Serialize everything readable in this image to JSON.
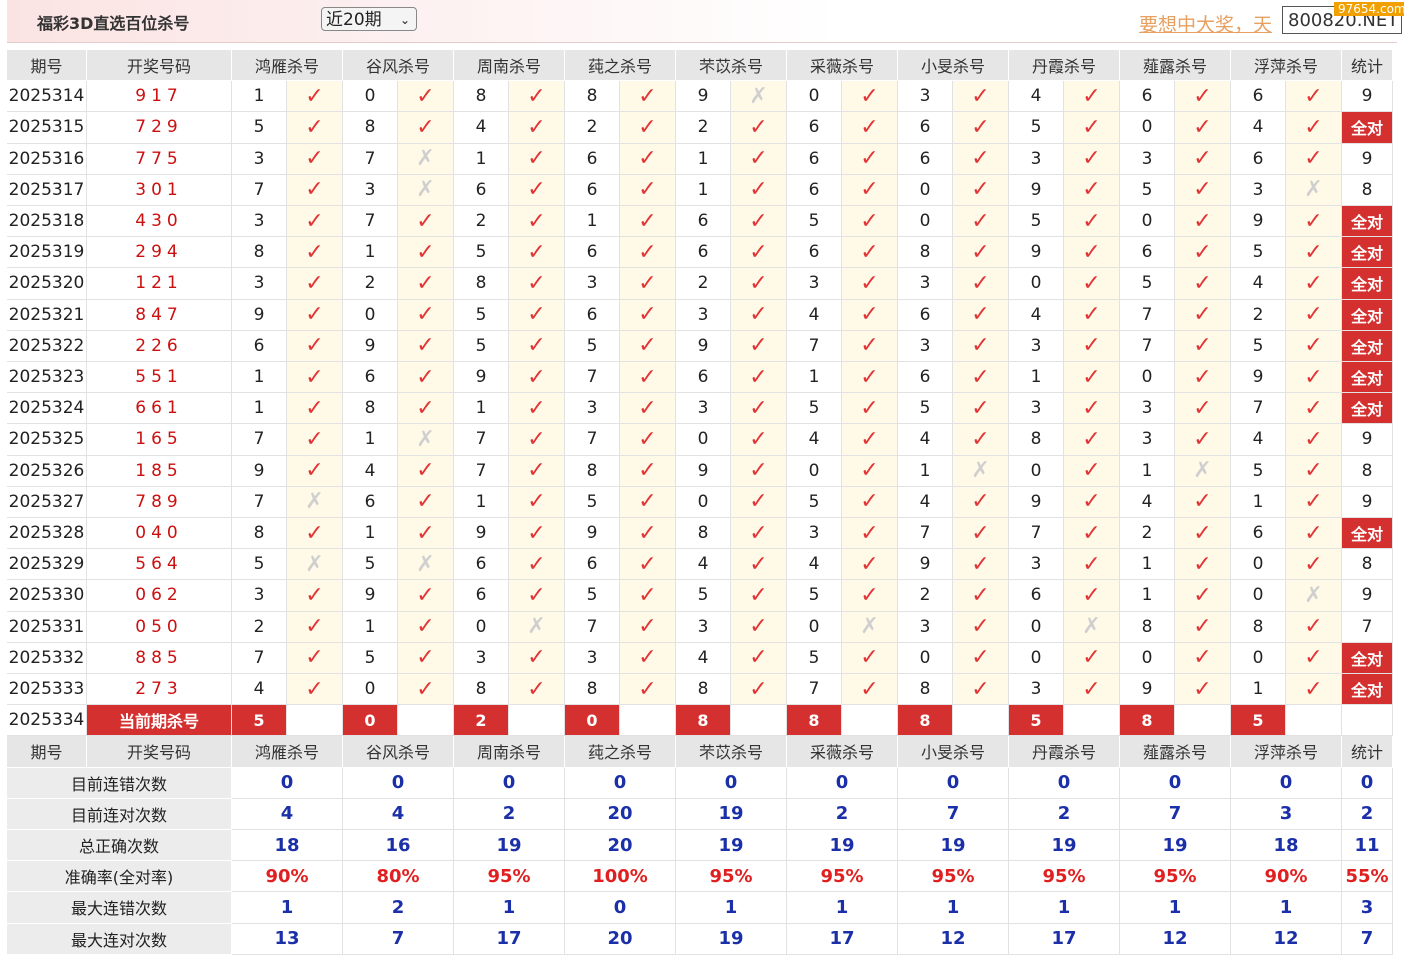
{
  "header": {
    "title": "福彩3D直选百位杀号",
    "period_select": "近20期",
    "marquee": "要想中大奖，天",
    "site": "800820.NET",
    "watermark": "97654.com"
  },
  "table": {
    "columns": [
      "期号",
      "开奖号码",
      "鸿雁杀号",
      "谷风杀号",
      "周南杀号",
      "莼之杀号",
      "芣苡杀号",
      "采薇杀号",
      "小旻杀号",
      "丹霞杀号",
      "薤露杀号",
      "浮萍杀号",
      "统计"
    ],
    "rows": [
      {
        "period": "2025314",
        "draw": "917",
        "kills": [
          [
            1,
            "✓"
          ],
          [
            0,
            "✓"
          ],
          [
            8,
            "✓"
          ],
          [
            8,
            "✓"
          ],
          [
            9,
            "✗"
          ],
          [
            0,
            "✓"
          ],
          [
            3,
            "✓"
          ],
          [
            4,
            "✓"
          ],
          [
            6,
            "✓"
          ],
          [
            6,
            "✓"
          ]
        ],
        "stat": 9
      },
      {
        "period": "2025315",
        "draw": "729",
        "kills": [
          [
            5,
            "✓"
          ],
          [
            8,
            "✓"
          ],
          [
            4,
            "✓"
          ],
          [
            2,
            "✓"
          ],
          [
            2,
            "✓"
          ],
          [
            6,
            "✓"
          ],
          [
            6,
            "✓"
          ],
          [
            5,
            "✓"
          ],
          [
            0,
            "✓"
          ],
          [
            4,
            "✓"
          ]
        ],
        "stat": "全对"
      },
      {
        "period": "2025316",
        "draw": "775",
        "kills": [
          [
            3,
            "✓"
          ],
          [
            7,
            "✗"
          ],
          [
            1,
            "✓"
          ],
          [
            6,
            "✓"
          ],
          [
            1,
            "✓"
          ],
          [
            6,
            "✓"
          ],
          [
            6,
            "✓"
          ],
          [
            3,
            "✓"
          ],
          [
            3,
            "✓"
          ],
          [
            6,
            "✓"
          ]
        ],
        "stat": 9
      },
      {
        "period": "2025317",
        "draw": "301",
        "kills": [
          [
            7,
            "✓"
          ],
          [
            3,
            "✗"
          ],
          [
            6,
            "✓"
          ],
          [
            6,
            "✓"
          ],
          [
            1,
            "✓"
          ],
          [
            6,
            "✓"
          ],
          [
            0,
            "✓"
          ],
          [
            9,
            "✓"
          ],
          [
            5,
            "✓"
          ],
          [
            3,
            "✗"
          ]
        ],
        "stat": 8
      },
      {
        "period": "2025318",
        "draw": "430",
        "kills": [
          [
            3,
            "✓"
          ],
          [
            7,
            "✓"
          ],
          [
            2,
            "✓"
          ],
          [
            1,
            "✓"
          ],
          [
            6,
            "✓"
          ],
          [
            5,
            "✓"
          ],
          [
            0,
            "✓"
          ],
          [
            5,
            "✓"
          ],
          [
            0,
            "✓"
          ],
          [
            9,
            "✓"
          ]
        ],
        "stat": "全对"
      },
      {
        "period": "2025319",
        "draw": "294",
        "kills": [
          [
            8,
            "✓"
          ],
          [
            1,
            "✓"
          ],
          [
            5,
            "✓"
          ],
          [
            6,
            "✓"
          ],
          [
            6,
            "✓"
          ],
          [
            6,
            "✓"
          ],
          [
            8,
            "✓"
          ],
          [
            9,
            "✓"
          ],
          [
            6,
            "✓"
          ],
          [
            5,
            "✓"
          ]
        ],
        "stat": "全对"
      },
      {
        "period": "2025320",
        "draw": "121",
        "kills": [
          [
            3,
            "✓"
          ],
          [
            2,
            "✓"
          ],
          [
            8,
            "✓"
          ],
          [
            3,
            "✓"
          ],
          [
            2,
            "✓"
          ],
          [
            3,
            "✓"
          ],
          [
            3,
            "✓"
          ],
          [
            0,
            "✓"
          ],
          [
            5,
            "✓"
          ],
          [
            4,
            "✓"
          ]
        ],
        "stat": "全对"
      },
      {
        "period": "2025321",
        "draw": "847",
        "kills": [
          [
            9,
            "✓"
          ],
          [
            0,
            "✓"
          ],
          [
            5,
            "✓"
          ],
          [
            6,
            "✓"
          ],
          [
            3,
            "✓"
          ],
          [
            4,
            "✓"
          ],
          [
            6,
            "✓"
          ],
          [
            4,
            "✓"
          ],
          [
            7,
            "✓"
          ],
          [
            2,
            "✓"
          ]
        ],
        "stat": "全对"
      },
      {
        "period": "2025322",
        "draw": "226",
        "kills": [
          [
            6,
            "✓"
          ],
          [
            9,
            "✓"
          ],
          [
            5,
            "✓"
          ],
          [
            5,
            "✓"
          ],
          [
            9,
            "✓"
          ],
          [
            7,
            "✓"
          ],
          [
            3,
            "✓"
          ],
          [
            3,
            "✓"
          ],
          [
            7,
            "✓"
          ],
          [
            5,
            "✓"
          ]
        ],
        "stat": "全对"
      },
      {
        "period": "2025323",
        "draw": "551",
        "kills": [
          [
            1,
            "✓"
          ],
          [
            6,
            "✓"
          ],
          [
            9,
            "✓"
          ],
          [
            7,
            "✓"
          ],
          [
            6,
            "✓"
          ],
          [
            1,
            "✓"
          ],
          [
            6,
            "✓"
          ],
          [
            1,
            "✓"
          ],
          [
            0,
            "✓"
          ],
          [
            9,
            "✓"
          ]
        ],
        "stat": "全对"
      },
      {
        "period": "2025324",
        "draw": "661",
        "kills": [
          [
            1,
            "✓"
          ],
          [
            8,
            "✓"
          ],
          [
            1,
            "✓"
          ],
          [
            3,
            "✓"
          ],
          [
            3,
            "✓"
          ],
          [
            5,
            "✓"
          ],
          [
            5,
            "✓"
          ],
          [
            3,
            "✓"
          ],
          [
            3,
            "✓"
          ],
          [
            7,
            "✓"
          ]
        ],
        "stat": "全对"
      },
      {
        "period": "2025325",
        "draw": "165",
        "kills": [
          [
            7,
            "✓"
          ],
          [
            1,
            "✗"
          ],
          [
            7,
            "✓"
          ],
          [
            7,
            "✓"
          ],
          [
            0,
            "✓"
          ],
          [
            4,
            "✓"
          ],
          [
            4,
            "✓"
          ],
          [
            8,
            "✓"
          ],
          [
            3,
            "✓"
          ],
          [
            4,
            "✓"
          ]
        ],
        "stat": 9
      },
      {
        "period": "2025326",
        "draw": "185",
        "kills": [
          [
            9,
            "✓"
          ],
          [
            4,
            "✓"
          ],
          [
            7,
            "✓"
          ],
          [
            8,
            "✓"
          ],
          [
            9,
            "✓"
          ],
          [
            0,
            "✓"
          ],
          [
            1,
            "✗"
          ],
          [
            0,
            "✓"
          ],
          [
            1,
            "✗"
          ],
          [
            5,
            "✓"
          ]
        ],
        "stat": 8
      },
      {
        "period": "2025327",
        "draw": "789",
        "kills": [
          [
            7,
            "✗"
          ],
          [
            6,
            "✓"
          ],
          [
            1,
            "✓"
          ],
          [
            5,
            "✓"
          ],
          [
            0,
            "✓"
          ],
          [
            5,
            "✓"
          ],
          [
            4,
            "✓"
          ],
          [
            9,
            "✓"
          ],
          [
            4,
            "✓"
          ],
          [
            1,
            "✓"
          ]
        ],
        "stat": 9
      },
      {
        "period": "2025328",
        "draw": "040",
        "kills": [
          [
            8,
            "✓"
          ],
          [
            1,
            "✓"
          ],
          [
            9,
            "✓"
          ],
          [
            9,
            "✓"
          ],
          [
            8,
            "✓"
          ],
          [
            3,
            "✓"
          ],
          [
            7,
            "✓"
          ],
          [
            7,
            "✓"
          ],
          [
            2,
            "✓"
          ],
          [
            6,
            "✓"
          ]
        ],
        "stat": "全对"
      },
      {
        "period": "2025329",
        "draw": "564",
        "kills": [
          [
            5,
            "✗"
          ],
          [
            5,
            "✗"
          ],
          [
            6,
            "✓"
          ],
          [
            6,
            "✓"
          ],
          [
            4,
            "✓"
          ],
          [
            4,
            "✓"
          ],
          [
            9,
            "✓"
          ],
          [
            3,
            "✓"
          ],
          [
            1,
            "✓"
          ],
          [
            0,
            "✓"
          ]
        ],
        "stat": 8
      },
      {
        "period": "2025330",
        "draw": "062",
        "kills": [
          [
            3,
            "✓"
          ],
          [
            9,
            "✓"
          ],
          [
            6,
            "✓"
          ],
          [
            5,
            "✓"
          ],
          [
            5,
            "✓"
          ],
          [
            5,
            "✓"
          ],
          [
            2,
            "✓"
          ],
          [
            6,
            "✓"
          ],
          [
            1,
            "✓"
          ],
          [
            0,
            "✗"
          ]
        ],
        "stat": 9
      },
      {
        "period": "2025331",
        "draw": "050",
        "kills": [
          [
            2,
            "✓"
          ],
          [
            1,
            "✓"
          ],
          [
            0,
            "✗"
          ],
          [
            7,
            "✓"
          ],
          [
            3,
            "✓"
          ],
          [
            0,
            "✗"
          ],
          [
            3,
            "✓"
          ],
          [
            0,
            "✗"
          ],
          [
            8,
            "✓"
          ],
          [
            8,
            "✓"
          ]
        ],
        "stat": 7
      },
      {
        "period": "2025332",
        "draw": "885",
        "kills": [
          [
            7,
            "✓"
          ],
          [
            5,
            "✓"
          ],
          [
            3,
            "✓"
          ],
          [
            3,
            "✓"
          ],
          [
            4,
            "✓"
          ],
          [
            5,
            "✓"
          ],
          [
            0,
            "✓"
          ],
          [
            0,
            "✓"
          ],
          [
            0,
            "✓"
          ],
          [
            0,
            "✓"
          ]
        ],
        "stat": "全对"
      },
      {
        "period": "2025333",
        "draw": "273",
        "kills": [
          [
            4,
            "✓"
          ],
          [
            0,
            "✓"
          ],
          [
            8,
            "✓"
          ],
          [
            8,
            "✓"
          ],
          [
            8,
            "✓"
          ],
          [
            7,
            "✓"
          ],
          [
            8,
            "✓"
          ],
          [
            3,
            "✓"
          ],
          [
            9,
            "✓"
          ],
          [
            1,
            "✓"
          ]
        ],
        "stat": "全对"
      }
    ],
    "current": {
      "period": "2025334",
      "label": "当前期杀号",
      "kills": [
        5,
        0,
        2,
        0,
        8,
        8,
        8,
        5,
        8,
        5
      ]
    },
    "summary": [
      {
        "label": "目前连错次数",
        "values": [
          0,
          0,
          0,
          0,
          0,
          0,
          0,
          0,
          0,
          0,
          0
        ]
      },
      {
        "label": "目前连对次数",
        "values": [
          4,
          4,
          2,
          20,
          19,
          2,
          7,
          2,
          7,
          3,
          2
        ]
      },
      {
        "label": "总正确次数",
        "values": [
          18,
          16,
          19,
          20,
          19,
          19,
          19,
          19,
          19,
          18,
          11
        ]
      },
      {
        "label": "准确率(全对率)",
        "values": [
          "90%",
          "80%",
          "95%",
          "100%",
          "95%",
          "95%",
          "95%",
          "95%",
          "95%",
          "90%",
          "55%"
        ]
      },
      {
        "label": "最大连错次数",
        "values": [
          1,
          2,
          1,
          0,
          1,
          1,
          1,
          1,
          1,
          1,
          3
        ]
      },
      {
        "label": "最大连对次数",
        "values": [
          13,
          7,
          17,
          20,
          19,
          17,
          12,
          17,
          12,
          12,
          7
        ]
      }
    ]
  }
}
